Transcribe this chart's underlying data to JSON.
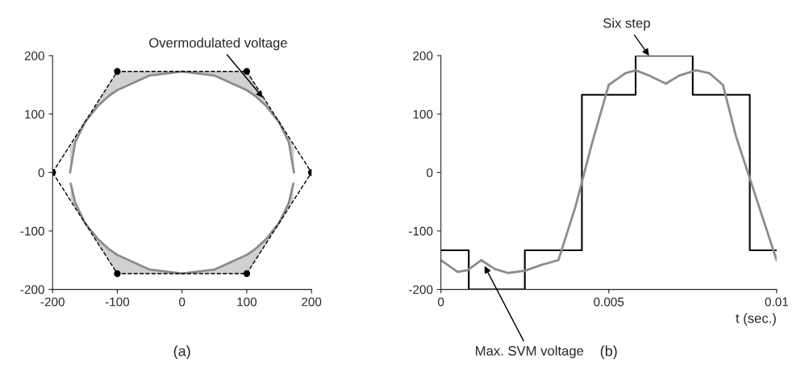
{
  "chart_data": [
    {
      "type": "line",
      "subtitle": "(a)",
      "xlim": [
        -200,
        200
      ],
      "ylim": [
        -200,
        200
      ],
      "xticks": [
        -200,
        -100,
        0,
        100,
        200
      ],
      "yticks": [
        -200,
        -100,
        0,
        100,
        200
      ],
      "grid": false,
      "series": [
        {
          "color": "#8c8c8c",
          "x": [
            -173,
            -165,
            -150,
            -130,
            -112,
            -100,
            -50,
            0,
            50,
            100,
            112,
            130,
            150,
            165,
            173
          ],
          "values": [
            0,
            52,
            86,
            114,
            132,
            141,
            166,
            173,
            166,
            141,
            132,
            114,
            86,
            52,
            0
          ],
          "lower": [
            0,
            52,
            86,
            114,
            132,
            141,
            166,
            173,
            166,
            141,
            132,
            114,
            86,
            52,
            0
          ],
          "upper": [
            42,
            61,
            87,
            121,
            153,
            173,
            173,
            173,
            173,
            173,
            153,
            121,
            87,
            61,
            42
          ]
        },
        {
          "color": "#8c8c8c",
          "x": [
            -172,
            -165,
            -150,
            -130,
            -112,
            -100,
            -50,
            0,
            50,
            100,
            112,
            130,
            150,
            165,
            172
          ],
          "values": [
            -19,
            -52,
            -86,
            -114,
            -132,
            -141,
            -166,
            -173,
            -166,
            -141,
            -132,
            -114,
            -86,
            -52,
            -19
          ],
          "lower": [
            -45,
            -61,
            -87,
            -121,
            -153,
            -173,
            -173,
            -173,
            -173,
            -173,
            -153,
            -121,
            -87,
            -61,
            -45
          ],
          "upper": [
            -19,
            -52,
            -86,
            -114,
            -132,
            -141,
            -166,
            -173,
            -166,
            -141,
            -132,
            -114,
            -86,
            -52,
            -19
          ]
        },
        {
          "color": "#000000",
          "line_style": "dashed",
          "marker": "circle",
          "x": [
            -200,
            -100,
            100,
            200
          ],
          "values": [
            0,
            173,
            173,
            0
          ]
        },
        {
          "color": "#000000",
          "line_style": "dashed",
          "marker": "circle",
          "x": [
            -200,
            -100,
            100,
            200
          ],
          "values": [
            0,
            -173,
            -173,
            0
          ]
        }
      ],
      "annotations": [
        {
          "text": "Overmodulated voltage",
          "x": 125,
          "y": 128
        }
      ]
    },
    {
      "type": "line",
      "subtitle": "(b)",
      "xlabel": "t (sec.)",
      "xlim": [
        0,
        0.01
      ],
      "ylim": [
        -200,
        200
      ],
      "xticks": [
        0,
        0.005,
        0.01
      ],
      "yticks": [
        -200,
        -100,
        0,
        100,
        200
      ],
      "grid": false,
      "series": [
        {
          "type": "step",
          "color": "#000000",
          "x": [
            0,
            0.00083,
            0.0025,
            0.0042,
            0.0058,
            0.0075,
            0.0092,
            0.01
          ],
          "values": [
            -133,
            -200,
            -133,
            133,
            200,
            133,
            -133,
            -133
          ]
        },
        {
          "color": "#8c8c8c",
          "x": [
            0,
            0.0005,
            0.0008,
            0.0012,
            0.0016,
            0.002,
            0.0025,
            0.003,
            0.0035,
            0.004,
            0.0045,
            0.005,
            0.0055,
            0.0058,
            0.0062,
            0.0067,
            0.0071,
            0.0076,
            0.008,
            0.0084,
            0.0088,
            0.0092,
            0.0096,
            0.01
          ],
          "values": [
            -150,
            -170,
            -167,
            -150,
            -165,
            -172,
            -168,
            -158,
            -150,
            -60,
            50,
            150,
            170,
            175,
            166,
            152,
            166,
            175,
            170,
            150,
            60,
            -10,
            -80,
            -150
          ]
        }
      ],
      "annotations": [
        {
          "text": "Six step",
          "x": 0.0062,
          "y": 200
        },
        {
          "text": "Max. SVM voltage",
          "x": 0.0013,
          "y": -160
        }
      ]
    }
  ]
}
